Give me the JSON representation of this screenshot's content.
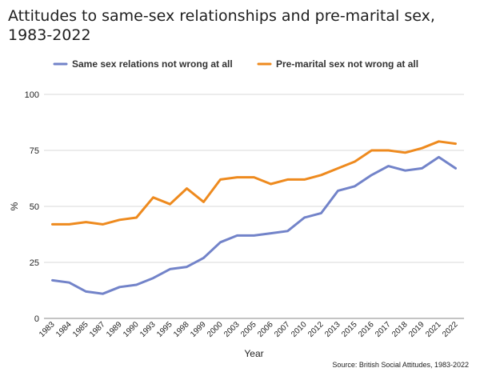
{
  "title": "Attitudes to same-sex relationships and pre-marital sex, 1983-2022",
  "source": "Source: British Social Attitudes, 1983-2022",
  "chart_data": {
    "type": "line",
    "title": "Attitudes to same-sex relationships and pre-marital sex, 1983-2022",
    "xlabel": "Year",
    "ylabel": "%",
    "ylim": [
      0,
      100
    ],
    "yticks": [
      "0",
      "25",
      "50",
      "75",
      "100"
    ],
    "grid": "horizontal",
    "legend": "top",
    "categories": [
      "1983",
      "1984",
      "1985",
      "1987",
      "1989",
      "1990",
      "1993",
      "1995",
      "1998",
      "1999",
      "2000",
      "2003",
      "2005",
      "2006",
      "2007",
      "2010",
      "2012",
      "2013",
      "2015",
      "2016",
      "2017",
      "2018",
      "2019",
      "2021",
      "2022"
    ],
    "series": [
      {
        "name": "Same sex relations not wrong at all",
        "color": "#7283c9",
        "values": [
          17,
          16,
          12,
          11,
          14,
          15,
          18,
          22,
          23,
          27,
          34,
          37,
          37,
          38,
          39,
          45,
          47,
          57,
          59,
          64,
          68,
          66,
          67,
          72,
          67
        ]
      },
      {
        "name": "Pre-marital sex not wrong at all",
        "color": "#ee8a1e",
        "values": [
          42,
          42,
          43,
          42,
          44,
          45,
          54,
          51,
          58,
          52,
          62,
          63,
          63,
          60,
          62,
          62,
          64,
          67,
          70,
          75,
          75,
          74,
          76,
          79,
          78
        ]
      }
    ]
  }
}
